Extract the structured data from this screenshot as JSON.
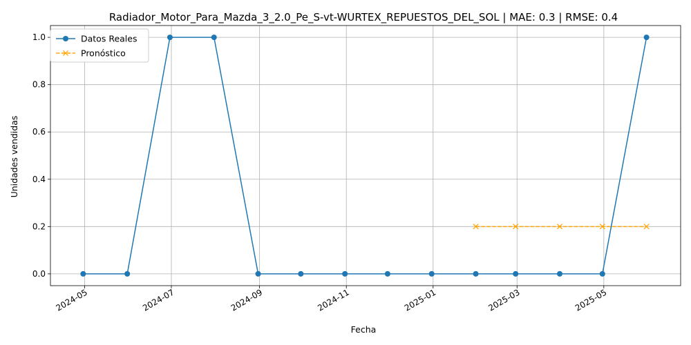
{
  "chart_data": {
    "type": "line",
    "title": "Radiador_Motor_Para_Mazda_3_2.0_Pe_S-vt-WURTEX_REPUESTOS_DEL_SOL | MAE: 0.3 | RMSE: 0.4",
    "xlabel": "Fecha",
    "ylabel": "Unidades vendidas",
    "xlim": [
      "2024-04-07",
      "2025-06-24"
    ],
    "ylim": [
      -0.05,
      1.05
    ],
    "x_ticks": [
      "2024-05",
      "2024-07",
      "2024-09",
      "2024-11",
      "2025-01",
      "2025-03",
      "2025-05"
    ],
    "y_ticks": [
      "0.0",
      "0.2",
      "0.4",
      "0.6",
      "0.8",
      "1.0"
    ],
    "grid": true,
    "legend_position": "top-left",
    "series": [
      {
        "name": "Datos Reales",
        "color": "#1f77b4",
        "marker": "circle",
        "style": "solid",
        "x": [
          "2024-04-30",
          "2024-05-31",
          "2024-06-30",
          "2024-07-31",
          "2024-08-31",
          "2024-09-30",
          "2024-10-31",
          "2024-11-30",
          "2024-12-31",
          "2025-01-31",
          "2025-02-28",
          "2025-03-31",
          "2025-04-30",
          "2025-05-31"
        ],
        "values": [
          0,
          0,
          1,
          1,
          0,
          0,
          0,
          0,
          0,
          0,
          0,
          0,
          0,
          1
        ]
      },
      {
        "name": "Pronóstico",
        "color": "#ffa500",
        "marker": "x",
        "style": "dashed",
        "x": [
          "2025-01-31",
          "2025-02-28",
          "2025-03-31",
          "2025-04-30",
          "2025-05-31"
        ],
        "values": [
          0.2,
          0.2,
          0.2,
          0.2,
          0.2
        ]
      }
    ]
  }
}
